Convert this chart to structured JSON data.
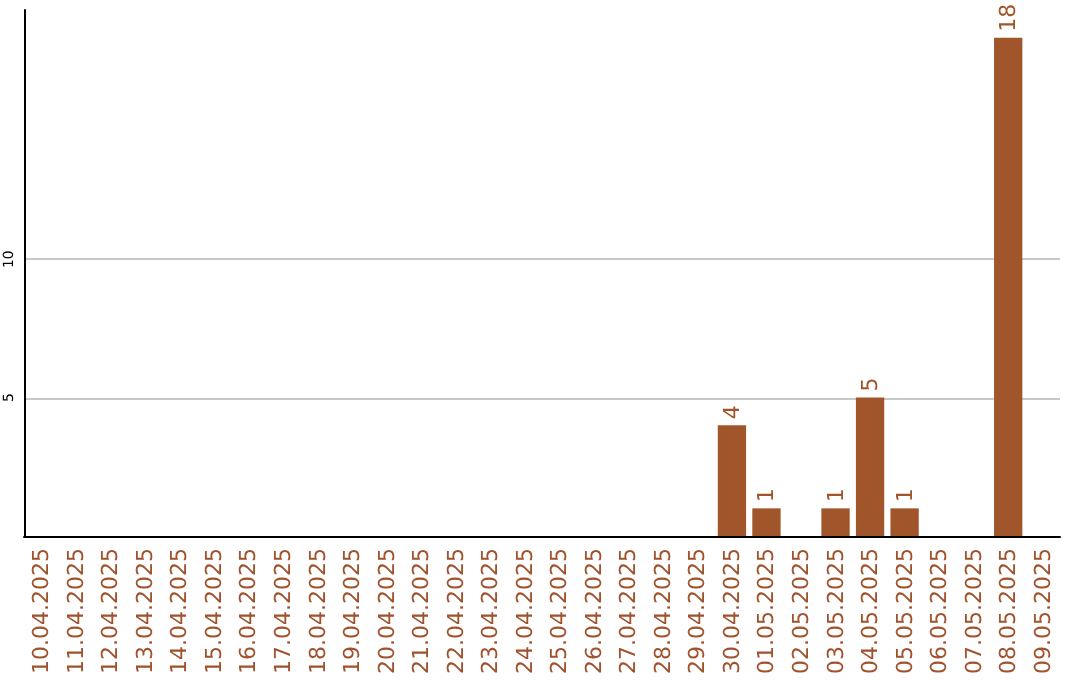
{
  "chart_data": {
    "type": "bar",
    "categories": [
      "10.04.2025",
      "11.04.2025",
      "12.04.2025",
      "13.04.2025",
      "14.04.2025",
      "15.04.2025",
      "16.04.2025",
      "17.04.2025",
      "18.04.2025",
      "19.04.2025",
      "20.04.2025",
      "21.04.2025",
      "22.04.2025",
      "23.04.2025",
      "24.04.2025",
      "25.04.2025",
      "26.04.2025",
      "27.04.2025",
      "28.04.2025",
      "29.04.2025",
      "30.04.2025",
      "01.05.2025",
      "02.05.2025",
      "03.05.2025",
      "04.05.2025",
      "05.05.2025",
      "06.05.2025",
      "07.05.2025",
      "08.05.2025",
      "09.05.2025"
    ],
    "values": [
      0,
      0,
      0,
      0,
      0,
      0,
      0,
      0,
      0,
      0,
      0,
      0,
      0,
      0,
      0,
      0,
      0,
      0,
      0,
      0,
      4,
      1,
      0,
      1,
      5,
      1,
      0,
      0,
      18,
      0
    ],
    "value_labels": [
      null,
      null,
      null,
      null,
      null,
      null,
      null,
      null,
      null,
      null,
      null,
      null,
      null,
      null,
      null,
      null,
      null,
      null,
      null,
      null,
      "4",
      "1",
      null,
      "1",
      "5",
      "1",
      null,
      null,
      "18",
      null
    ],
    "color": "#a0562a",
    "ylim": [
      0,
      19
    ],
    "yticks": [
      5,
      10
    ],
    "grid": "y"
  }
}
